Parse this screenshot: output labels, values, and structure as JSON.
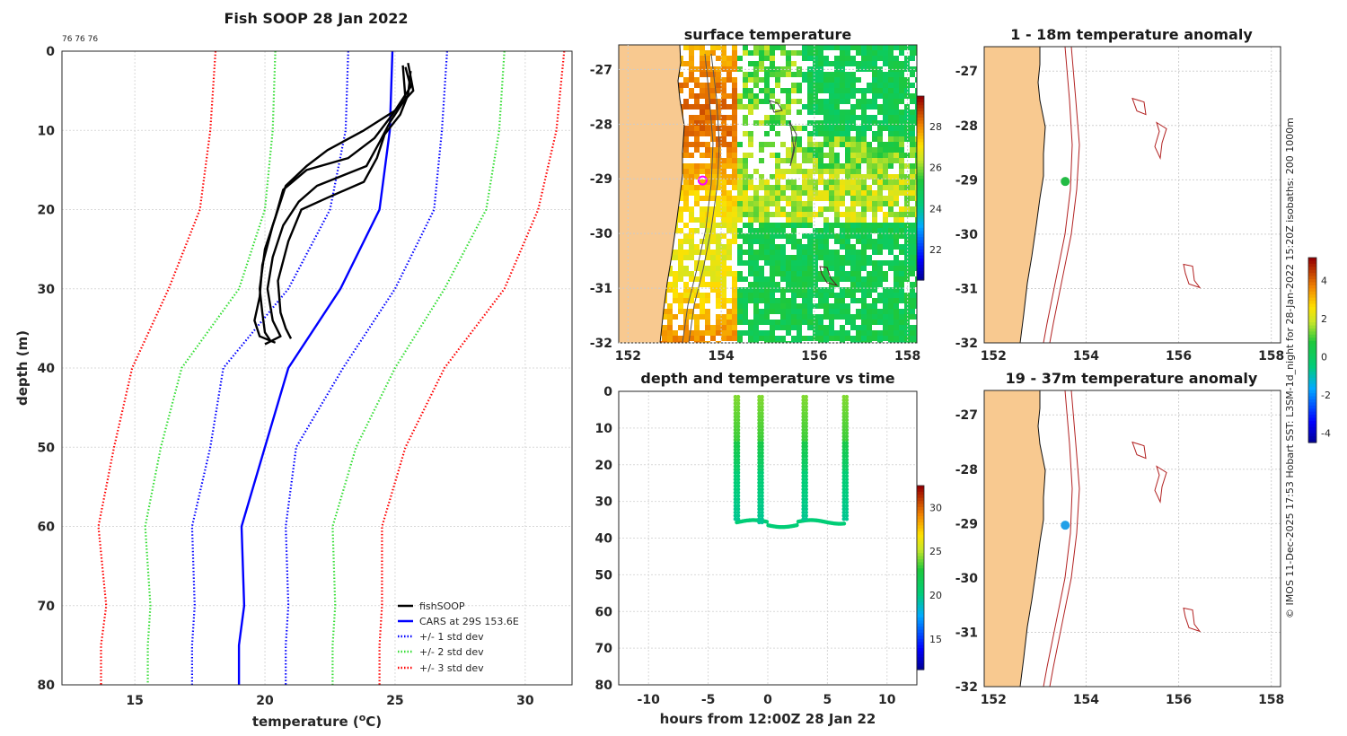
{
  "chart_data": [
    {
      "id": "profile",
      "type": "line",
      "title": "Fish SOOP 28 Jan 2022",
      "annotation": "76 76 76",
      "xlabel": "temperature (",
      "xlabel_sup": "o",
      "xlabel_tail": "C)",
      "ylabel": "depth (m)",
      "xlim": [
        12.2,
        31.8
      ],
      "ylim": [
        80,
        0
      ],
      "xticks": [
        15,
        20,
        25,
        30
      ],
      "yticks": [
        0,
        10,
        20,
        30,
        40,
        50,
        60,
        70,
        80
      ],
      "depths": [
        0,
        10,
        20,
        30,
        40,
        50,
        60,
        70,
        75,
        80
      ],
      "series": [
        {
          "name": "CARS at 29S 153.6E",
          "color": "#0000ff",
          "style": "solid",
          "values": [
            24.9,
            24.8,
            24.4,
            22.9,
            20.9,
            20.0,
            19.1,
            19.2,
            19.0,
            19.0
          ]
        },
        {
          "name": "+/- 1 std dev",
          "color": "#0000ff",
          "style": "dotted",
          "pair": true,
          "lower": [
            23.2,
            23.1,
            22.5,
            20.9,
            18.4,
            17.9,
            17.2,
            17.3,
            17.2,
            17.2
          ],
          "upper": [
            27.0,
            26.8,
            26.5,
            25.0,
            23.0,
            21.2,
            20.8,
            20.9,
            20.8,
            20.8
          ]
        },
        {
          "name": "+/- 2 std dev",
          "color": "#33dd33",
          "style": "dotted",
          "pair": true,
          "lower": [
            20.4,
            20.3,
            20.0,
            19.0,
            16.8,
            16.0,
            15.4,
            15.6,
            15.5,
            15.5
          ],
          "upper": [
            29.2,
            29.0,
            28.5,
            26.9,
            25.0,
            23.5,
            22.6,
            22.7,
            22.6,
            22.6
          ],
          "note": "green"
        },
        {
          "name": "+/- 3 std dev",
          "color": "#ff0000",
          "style": "dotted",
          "pair": true,
          "lower": [
            18.1,
            17.9,
            17.5,
            16.3,
            14.9,
            14.2,
            13.6,
            13.9,
            13.7,
            13.7
          ],
          "upper": [
            31.5,
            31.2,
            30.5,
            29.2,
            26.9,
            25.4,
            24.5,
            24.5,
            24.4,
            24.4
          ]
        }
      ],
      "fishsoop": {
        "name": "fishSOOP",
        "color": "#000000",
        "casts": [
          [
            [
              25.5,
              1.5
            ],
            [
              25.7,
              5.0
            ],
            [
              25.0,
              7.5
            ],
            [
              23.8,
              10.0
            ],
            [
              22.4,
              12.5
            ],
            [
              21.6,
              14.5
            ],
            [
              20.8,
              17.0
            ],
            [
              20.3,
              22.0
            ],
            [
              19.9,
              27.0
            ],
            [
              19.8,
              31.0
            ],
            [
              19.6,
              34.0
            ],
            [
              19.8,
              36.0
            ],
            [
              20.4,
              36.8
            ]
          ],
          [
            [
              25.4,
              2.0
            ],
            [
              25.6,
              4.5
            ],
            [
              24.9,
              8.0
            ],
            [
              24.2,
              11.0
            ],
            [
              23.2,
              13.5
            ],
            [
              21.6,
              15.0
            ],
            [
              20.7,
              17.5
            ],
            [
              20.4,
              21.0
            ],
            [
              20.0,
              25.0
            ],
            [
              19.8,
              30.0
            ],
            [
              19.9,
              33.0
            ],
            [
              20.0,
              35.5
            ],
            [
              20.2,
              36.5
            ]
          ],
          [
            [
              25.3,
              1.8
            ],
            [
              25.4,
              6.0
            ],
            [
              24.8,
              9.0
            ],
            [
              24.4,
              11.5
            ],
            [
              23.9,
              14.5
            ],
            [
              22.0,
              17.0
            ],
            [
              21.3,
              19.0
            ],
            [
              20.7,
              22.0
            ],
            [
              20.3,
              26.0
            ],
            [
              20.1,
              30.0
            ],
            [
              20.3,
              34.0
            ],
            [
              20.6,
              36.0
            ],
            [
              20.0,
              37.0
            ]
          ],
          [
            [
              25.6,
              2.5
            ],
            [
              25.5,
              5.5
            ],
            [
              25.2,
              8.0
            ],
            [
              24.6,
              10.5
            ],
            [
              24.3,
              13.5
            ],
            [
              23.8,
              16.5
            ],
            [
              22.4,
              18.5
            ],
            [
              21.4,
              20.0
            ],
            [
              20.9,
              24.0
            ],
            [
              20.5,
              29.0
            ],
            [
              20.6,
              33.0
            ],
            [
              20.8,
              35.0
            ],
            [
              21.0,
              36.3
            ]
          ]
        ]
      },
      "legend_position": "bottom-right",
      "grid": true
    },
    {
      "id": "sst",
      "type": "heatmap",
      "title": "surface temperature",
      "xticks": [
        152,
        154,
        156,
        158
      ],
      "yticks": [
        -27,
        -28,
        -29,
        -30,
        -31,
        -32
      ],
      "xlim": [
        151.8,
        158.2
      ],
      "ylim": [
        -32.0,
        -26.55
      ],
      "colorbar": {
        "ticks": [
          22,
          24,
          26,
          28
        ],
        "range": [
          20.5,
          29.5
        ]
      },
      "marker": {
        "lon": 153.6,
        "lat": -29.03,
        "color": "#ff00ff"
      }
    },
    {
      "id": "anom1",
      "type": "heatmap",
      "title": "1 - 18m temperature anomaly",
      "xticks": [
        152,
        154,
        156,
        158
      ],
      "yticks": [
        -27,
        -28,
        -29,
        -30,
        -31,
        -32
      ],
      "xlim": [
        151.8,
        158.2
      ],
      "ylim": [
        -32.0,
        -26.55
      ],
      "point": {
        "lon": 153.55,
        "lat": -29.03,
        "color": "#22bb44"
      }
    },
    {
      "id": "anom2",
      "type": "heatmap",
      "title": "19 - 37m temperature anomaly",
      "xticks": [
        152,
        154,
        156,
        158
      ],
      "yticks": [
        -27,
        -28,
        -29,
        -30,
        -31,
        -32
      ],
      "xlim": [
        151.8,
        158.2
      ],
      "ylim": [
        -32.0,
        -26.55
      ],
      "point": {
        "lon": 153.55,
        "lat": -29.03,
        "color": "#22a0e8"
      }
    },
    {
      "id": "timeseries",
      "type": "scatter",
      "title": "depth and temperature vs time",
      "xlabel": "hours from 12:00Z 28 Jan 22",
      "xlim": [
        -12.5,
        12.5
      ],
      "ylim": [
        80,
        0
      ],
      "xticks": [
        -10,
        -5,
        0,
        5,
        10
      ],
      "yticks": [
        0,
        10,
        20,
        30,
        40,
        50,
        60,
        70,
        80
      ],
      "casts_hours": [
        -2.6,
        -0.6,
        3.1,
        6.5
      ],
      "surface_depth": 1.5,
      "bottom_depths": [
        35.5,
        35.8,
        35.4,
        35.0
      ],
      "colorbar": {
        "ticks": [
          15,
          20,
          25,
          30
        ],
        "range": [
          11.5,
          32.5
        ]
      }
    }
  ],
  "anomaly_colorbar": {
    "ticks": [
      4,
      2,
      0,
      -2,
      -4
    ],
    "range": [
      -4.5,
      5.2
    ]
  },
  "credit": "© IMOS 11-Dec-2025 17:53 Hobart SST: L3SM-1d_night for 28-Jan-2022 15:20Z isobaths: 200  1000m",
  "legend": {
    "fishsoop": "fishSOOP",
    "cars": "CARS at 29S 153.6E",
    "std1": "+/- 1 std dev",
    "std2": "+/- 2 std dev",
    "std3": "+/- 3 std dev"
  }
}
